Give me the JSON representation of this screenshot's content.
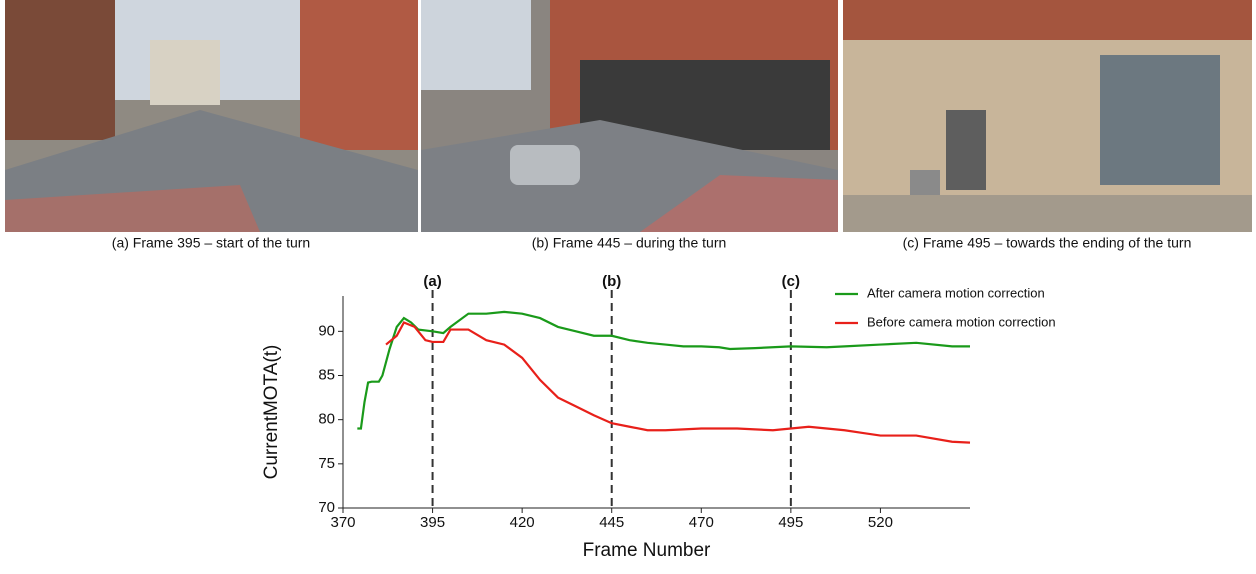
{
  "captions": [
    "(a) Frame 395 –  start of the turn",
    "(b) Frame 445 – during the turn",
    "(c) Frame 495 – towards the ending of the turn"
  ],
  "chart_data": {
    "type": "line",
    "xlabel": "Frame Number",
    "ylabel": "CurrentMOTA(t)",
    "xlim": [
      370,
      545
    ],
    "ylim": [
      70,
      94
    ],
    "xticks": [
      370,
      395,
      420,
      445,
      470,
      495,
      520
    ],
    "yticks": [
      70,
      75,
      80,
      85,
      90
    ],
    "markers": [
      {
        "x": 395,
        "label": "(a)"
      },
      {
        "x": 445,
        "label": "(b)"
      },
      {
        "x": 495,
        "label": "(c)"
      }
    ],
    "legend": "upper right",
    "series": [
      {
        "name": "After camera motion correction",
        "color": "#1a9a1a",
        "x": [
          374,
          375,
          376,
          377,
          378,
          380,
          381,
          383,
          385,
          387,
          389,
          391,
          395,
          398,
          400,
          405,
          410,
          415,
          420,
          425,
          430,
          435,
          440,
          445,
          450,
          455,
          460,
          465,
          470,
          475,
          478,
          485,
          495,
          505,
          510,
          520,
          530,
          540,
          545
        ],
        "values": [
          79,
          79,
          82,
          84.2,
          84.3,
          84.3,
          85,
          88,
          90.5,
          91.5,
          91,
          90.2,
          90,
          89.8,
          90.5,
          92,
          92,
          92.2,
          92,
          91.5,
          90.5,
          90,
          89.5,
          89.5,
          89,
          88.7,
          88.5,
          88.3,
          88.3,
          88.2,
          88,
          88.1,
          88.3,
          88.2,
          88.3,
          88.5,
          88.7,
          88.3,
          88.3
        ]
      },
      {
        "name": "Before camera motion correction",
        "color": "#e8201a",
        "x": [
          382,
          385,
          387,
          390,
          393,
          395,
          398,
          400,
          405,
          410,
          415,
          420,
          425,
          430,
          435,
          440,
          445,
          450,
          455,
          460,
          465,
          470,
          475,
          480,
          485,
          490,
          495,
          500,
          505,
          510,
          515,
          520,
          530,
          540,
          545
        ],
        "values": [
          88.5,
          89.5,
          91,
          90.5,
          89,
          88.8,
          88.8,
          90.2,
          90.2,
          89,
          88.5,
          87,
          84.5,
          82.5,
          81.5,
          80.5,
          79.6,
          79.2,
          78.8,
          78.8,
          78.9,
          79,
          79,
          79,
          78.9,
          78.8,
          79,
          79.2,
          79,
          78.8,
          78.5,
          78.2,
          78.2,
          77.5,
          77.4
        ]
      }
    ]
  }
}
